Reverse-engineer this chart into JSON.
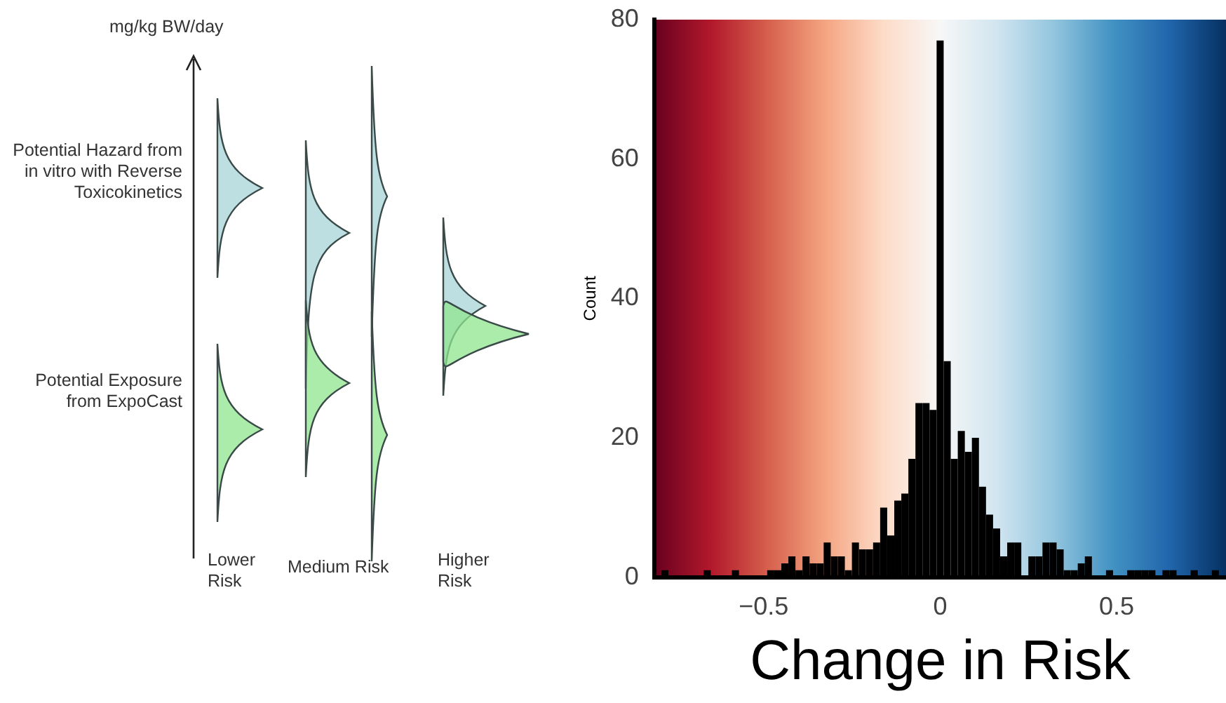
{
  "chart_data": [
    {
      "type": "other",
      "ylabel": "mg/kg BW/day",
      "annotations": [
        "Potential Hazard from in vitro with Reverse Toxicokinetics",
        "Potential Exposure from ExpoCast",
        "Lower Risk",
        "Medium Risk",
        "Higher Risk"
      ]
    },
    {
      "type": "histogram",
      "xlabel": "Change in Risk",
      "ylabel": "Count",
      "color": "#000000",
      "bins": [
        -0.81,
        -0.79,
        -0.77,
        -0.75,
        -0.73,
        -0.71,
        -0.69,
        -0.67,
        -0.65,
        -0.63,
        -0.61,
        -0.59,
        -0.57,
        -0.55,
        -0.53,
        -0.51,
        -0.49,
        -0.47,
        -0.45,
        -0.43,
        -0.41,
        -0.39,
        -0.37,
        -0.35,
        -0.33,
        -0.31,
        -0.29,
        -0.27,
        -0.25,
        -0.23,
        -0.21,
        -0.19,
        -0.17,
        -0.15,
        -0.13,
        -0.11,
        -0.09,
        -0.07,
        -0.05,
        -0.03,
        -0.01,
        0.01,
        0.03,
        0.05,
        0.07,
        0.09,
        0.11,
        0.13,
        0.15,
        0.17,
        0.19,
        0.21,
        0.23,
        0.25,
        0.27,
        0.29,
        0.31,
        0.33,
        0.35,
        0.37,
        0.39,
        0.41,
        0.43,
        0.45,
        0.47,
        0.49,
        0.51,
        0.53,
        0.55,
        0.57,
        0.59,
        0.61,
        0.63,
        0.65,
        0.67,
        0.69,
        0.71,
        0.73,
        0.75,
        0.77,
        0.79,
        0.81
      ],
      "values": [
        0,
        1,
        0,
        0,
        0,
        0,
        0,
        1,
        0,
        0,
        0,
        1,
        0,
        0,
        0,
        0,
        1,
        1,
        2,
        3,
        1,
        3,
        2,
        2,
        5,
        3,
        3,
        1,
        5,
        4,
        4,
        5,
        10,
        6,
        11,
        12,
        17,
        25,
        25,
        24,
        77,
        31,
        17,
        21,
        18,
        20,
        13,
        9,
        7,
        3,
        5,
        5,
        0,
        3,
        3,
        5,
        5,
        4,
        1,
        1,
        2,
        3,
        0,
        0,
        1,
        0,
        0,
        1,
        1,
        1,
        1,
        0,
        1,
        1,
        0,
        0,
        1,
        0,
        0,
        1,
        0
      ],
      "xlim": [
        -0.81,
        0.81
      ],
      "xticks": [
        {
          "value": -0.5,
          "label": "−0.5"
        },
        0,
        0.5
      ],
      "ylim": [
        0,
        80
      ],
      "yticks": [
        0,
        20,
        40,
        60,
        80
      ]
    }
  ]
}
